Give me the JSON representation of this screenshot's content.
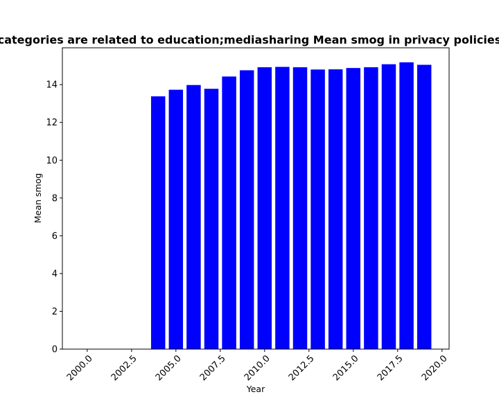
{
  "chart_data": {
    "type": "bar",
    "title": "categories are related to education;mediasharing Mean smog in privacy policies",
    "xlabel": "Year",
    "ylabel": "Mean smog",
    "x": [
      2004,
      2005,
      2006,
      2007,
      2008,
      2009,
      2010,
      2011,
      2012,
      2013,
      2014,
      2015,
      2016,
      2017,
      2018,
      2019
    ],
    "values": [
      13.38,
      13.73,
      13.98,
      13.78,
      14.43,
      14.76,
      14.92,
      14.94,
      14.92,
      14.8,
      14.81,
      14.88,
      14.92,
      15.08,
      15.18,
      15.05
    ],
    "xlim": [
      1998.6,
      2020.4
    ],
    "ylim": [
      0,
      15.95
    ],
    "xticks": [
      2000.0,
      2002.5,
      2005.0,
      2007.5,
      2010.0,
      2012.5,
      2015.0,
      2017.5,
      2020.0
    ],
    "xtick_labels": [
      "2000.0",
      "2002.5",
      "2005.0",
      "2007.5",
      "2010.0",
      "2012.5",
      "2015.0",
      "2017.5",
      "2020.0"
    ],
    "yticks": [
      0,
      2,
      4,
      6,
      8,
      10,
      12,
      14
    ],
    "ytick_labels": [
      "0",
      "2",
      "4",
      "6",
      "8",
      "10",
      "12",
      "14"
    ],
    "bar_color": "#0000ff",
    "grid": false,
    "legend": "none"
  }
}
